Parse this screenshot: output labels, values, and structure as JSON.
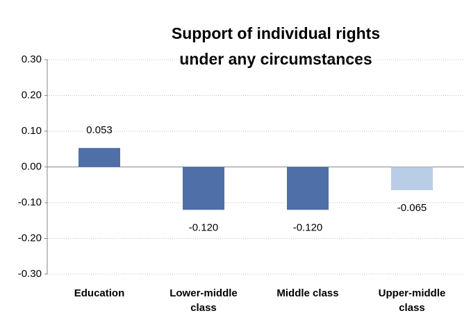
{
  "chart_data": {
    "type": "bar",
    "title": "Support of individual rights under any circumstances",
    "categories": [
      "Education",
      "Lower-middle class",
      "Middle class",
      "Upper-middle class"
    ],
    "values": [
      0.053,
      -0.12,
      -0.12,
      -0.065
    ],
    "value_labels": [
      "0.053",
      "-0.120",
      "-0.120",
      "-0.065"
    ],
    "colors": [
      "#4f6fa8",
      "#4f6fa8",
      "#4f6fa8",
      "#b9cde6"
    ],
    "ylim": [
      -0.3,
      0.3
    ],
    "yticks": [
      {
        "value": -0.3,
        "label": "-0.30"
      },
      {
        "value": -0.2,
        "label": "-0.20"
      },
      {
        "value": -0.1,
        "label": "-0.10"
      },
      {
        "value": 0,
        "label": "0.00"
      },
      {
        "value": 0.1,
        "label": "0.10"
      },
      {
        "value": 0.2,
        "label": "0.20"
      },
      {
        "value": 0.3,
        "label": "0.30"
      }
    ],
    "grid": true
  }
}
